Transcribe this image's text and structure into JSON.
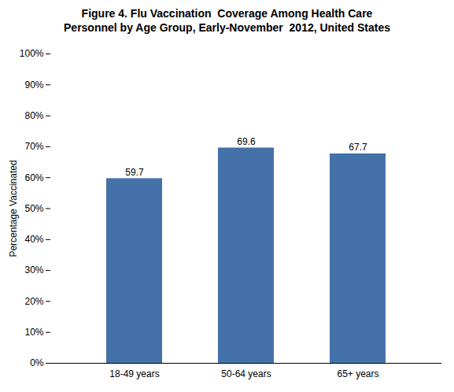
{
  "chart_data": {
    "type": "bar",
    "title": "Figure 4. Flu Vaccination  Coverage Among Health Care\nPersonnel by Age Group, Early-November  2012, United States",
    "categories": [
      "18-49 years",
      "50-64 years",
      "65+ years"
    ],
    "values": [
      59.7,
      69.6,
      67.7
    ],
    "color": "#4472a8",
    "ylabel": "Percentage Vaccinated",
    "ylim": [
      0,
      100
    ],
    "yticks": [
      {
        "value": 0,
        "label": "0%"
      },
      {
        "value": 10,
        "label": "10%"
      },
      {
        "value": 20,
        "label": "20%"
      },
      {
        "value": 30,
        "label": "30%"
      },
      {
        "value": 40,
        "label": "40%"
      },
      {
        "value": 50,
        "label": "50%"
      },
      {
        "value": 60,
        "label": "60%"
      },
      {
        "value": 70,
        "label": "70%"
      },
      {
        "value": 80,
        "label": "80%"
      },
      {
        "value": 90,
        "label": "90%"
      },
      {
        "value": 100,
        "label": "100%"
      }
    ],
    "grid": false,
    "data_labels": true
  }
}
